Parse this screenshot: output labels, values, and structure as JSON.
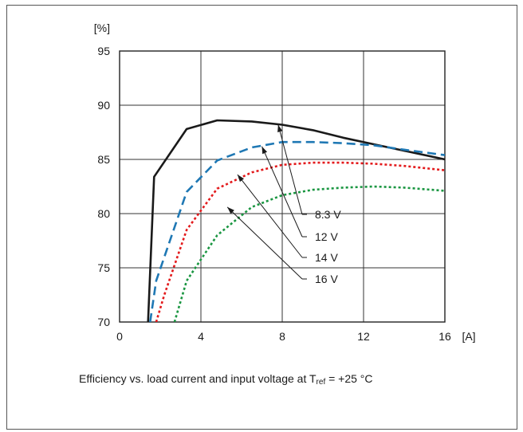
{
  "chart_data": {
    "type": "line",
    "title": "",
    "xlabel": "",
    "ylabel": "",
    "x_unit": "[A]",
    "y_unit": "[%]",
    "xlim": [
      0,
      16
    ],
    "ylim": [
      70,
      95
    ],
    "x_ticks": [
      "0",
      "4",
      "8",
      "12",
      "16"
    ],
    "y_ticks": [
      "95",
      "90",
      "85",
      "80",
      "75",
      "70"
    ],
    "grid": true,
    "series": [
      {
        "name": "8.3 V",
        "style": "solid",
        "color": "#1a1a1a",
        "x": [
          1.4,
          1.7,
          3.3,
          4.8,
          6.5,
          8.0,
          9.5,
          11.0,
          12.5,
          14.0,
          16.0
        ],
        "y": [
          70,
          83.4,
          87.8,
          88.6,
          88.5,
          88.2,
          87.7,
          87.0,
          86.4,
          85.8,
          85.0
        ]
      },
      {
        "name": "12 V",
        "style": "dashed",
        "color": "#1f78b4",
        "x": [
          1.5,
          1.8,
          3.3,
          4.8,
          6.5,
          8.0,
          9.5,
          11.0,
          12.5,
          14.0,
          16.0
        ],
        "y": [
          70,
          73.8,
          82.0,
          84.9,
          86.1,
          86.6,
          86.6,
          86.5,
          86.3,
          85.9,
          85.4
        ]
      },
      {
        "name": "14 V",
        "style": "dotted",
        "color": "#e31a1c",
        "x": [
          1.8,
          2.2,
          3.3,
          4.8,
          6.5,
          8.0,
          9.5,
          11.0,
          12.5,
          14.0,
          16.0
        ],
        "y": [
          70,
          72.5,
          78.5,
          82.3,
          83.8,
          84.5,
          84.7,
          84.7,
          84.6,
          84.4,
          84.0
        ]
      },
      {
        "name": "16 V",
        "style": "dotted",
        "color": "#1a9641",
        "x": [
          2.7,
          3.3,
          4.8,
          6.5,
          8.0,
          9.5,
          11.0,
          12.5,
          14.0,
          16.0
        ],
        "y": [
          70,
          73.8,
          78.0,
          80.6,
          81.7,
          82.2,
          82.4,
          82.5,
          82.4,
          82.1
        ]
      }
    ],
    "callouts": [
      {
        "label": "8.3 V",
        "series": 0,
        "target_x": 7.8,
        "target_y": 88.2
      },
      {
        "label": "12 V",
        "series": 1,
        "target_x": 7.0,
        "target_y": 86.2
      },
      {
        "label": "14 V",
        "series": 2,
        "target_x": 5.8,
        "target_y": 83.6
      },
      {
        "label": "16 V",
        "series": 3,
        "target_x": 5.3,
        "target_y": 80.6
      }
    ]
  },
  "caption": {
    "prefix": "Efficiency vs. load current and input voltage at T",
    "subscript": "ref",
    "suffix": " = +25 °C"
  }
}
